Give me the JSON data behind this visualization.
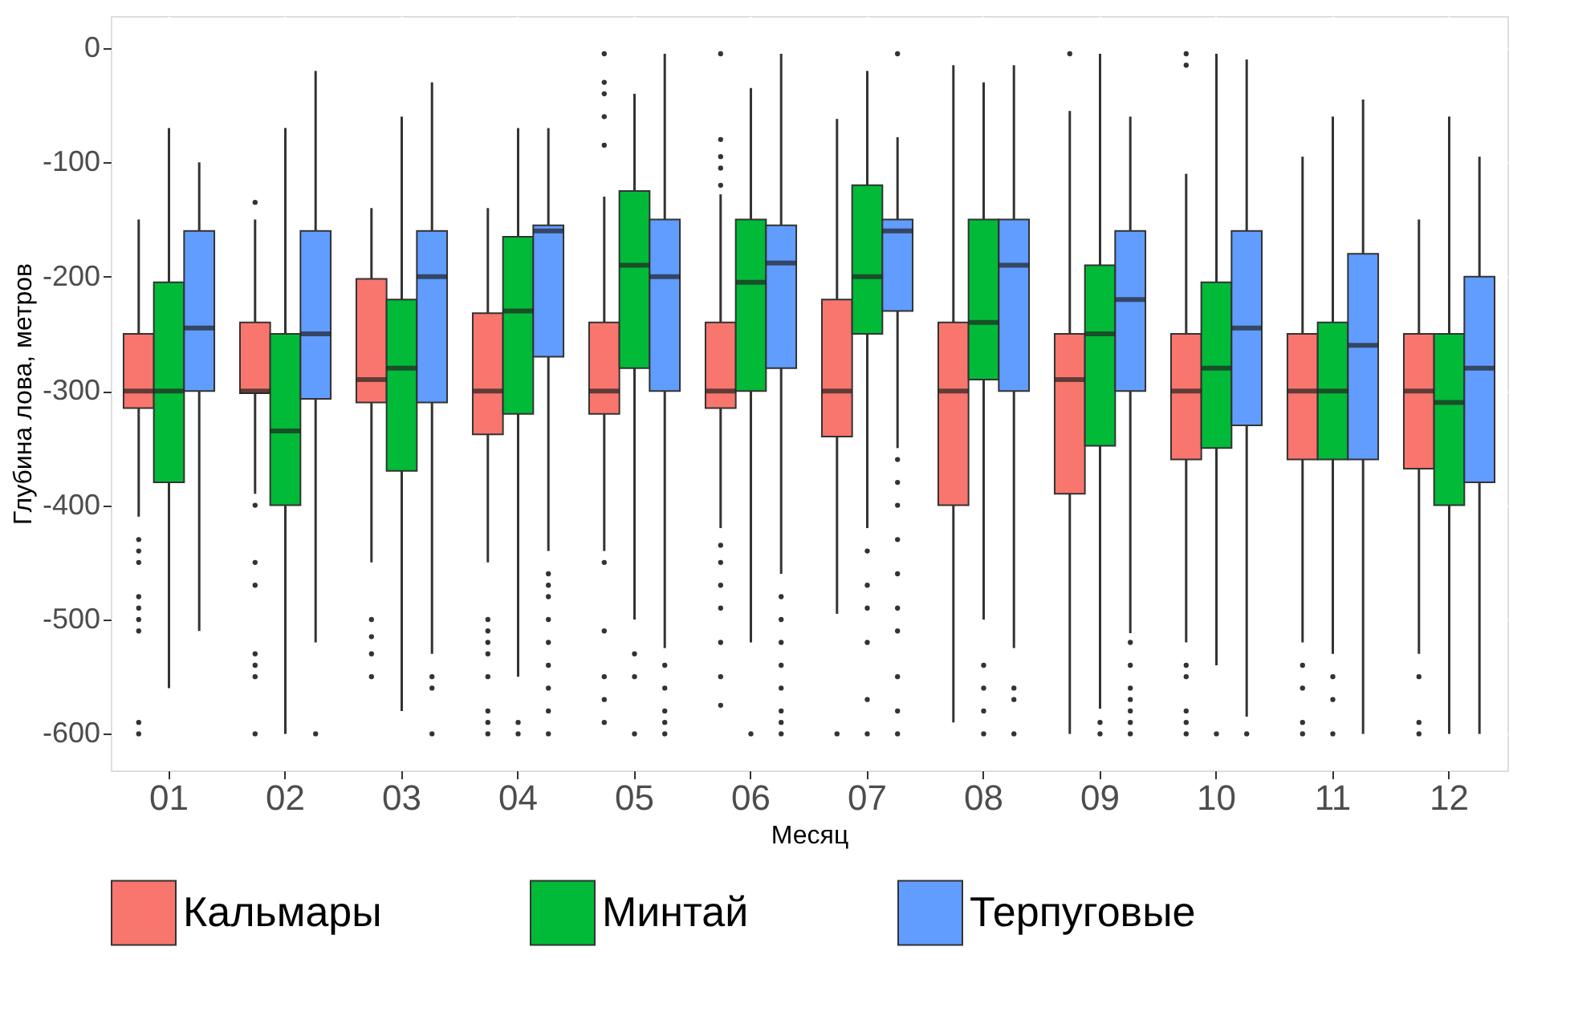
{
  "chart_data": {
    "type": "box",
    "xlabel": "Месяц",
    "ylabel": "Глубина лова, метров",
    "categories": [
      "01",
      "02",
      "03",
      "04",
      "05",
      "06",
      "07",
      "08",
      "09",
      "10",
      "11",
      "12"
    ],
    "ylim": [
      -632,
      28
    ],
    "yticks": [
      0,
      -100,
      -200,
      -300,
      -400,
      -500,
      -600
    ],
    "grid": true,
    "legend": "bottom",
    "series": [
      {
        "name": "Кальмары",
        "color": "#f8766d",
        "boxes": [
          {
            "low": -410,
            "q1": -315,
            "median": -300,
            "q3": -250,
            "high": -150,
            "outliers": [
              -430,
              -440,
              -450,
              -480,
              -490,
              -500,
              -510,
              -590,
              -600
            ]
          },
          {
            "low": -390,
            "q1": -302,
            "median": -300,
            "q3": -240,
            "high": -150,
            "outliers": [
              -135,
              -400,
              -450,
              -470,
              -530,
              -540,
              -550,
              -600
            ]
          },
          {
            "low": -450,
            "q1": -310,
            "median": -290,
            "q3": -202,
            "high": -140,
            "outliers": [
              -500,
              -515,
              -530,
              -550
            ]
          },
          {
            "low": -450,
            "q1": -338,
            "median": -300,
            "q3": -232,
            "high": -140,
            "outliers": [
              -500,
              -510,
              -520,
              -530,
              -550,
              -580,
              -590,
              -600
            ]
          },
          {
            "low": -440,
            "q1": -320,
            "median": -300,
            "q3": -240,
            "high": -130,
            "outliers": [
              -5,
              -30,
              -40,
              -60,
              -85,
              -450,
              -510,
              -550,
              -570,
              -590
            ]
          },
          {
            "low": -420,
            "q1": -315,
            "median": -300,
            "q3": -240,
            "high": -128,
            "outliers": [
              -5,
              -80,
              -95,
              -105,
              -120,
              -435,
              -450,
              -470,
              -490,
              -520,
              -550,
              -575
            ]
          },
          {
            "low": -495,
            "q1": -340,
            "median": -300,
            "q3": -220,
            "high": -62,
            "outliers": [
              -600
            ]
          },
          {
            "low": -590,
            "q1": -400,
            "median": -300,
            "q3": -240,
            "high": -15
          },
          {
            "low": -600,
            "q1": -390,
            "median": -290,
            "q3": -250,
            "high": -55,
            "outliers": [
              -5
            ]
          },
          {
            "low": -520,
            "q1": -360,
            "median": -300,
            "q3": -250,
            "high": -110,
            "outliers": [
              -5,
              -15,
              -540,
              -550,
              -580,
              -590,
              -600
            ]
          },
          {
            "low": -520,
            "q1": -360,
            "median": -300,
            "q3": -250,
            "high": -95,
            "outliers": [
              -540,
              -560,
              -590,
              -600
            ]
          },
          {
            "low": -530,
            "q1": -368,
            "median": -300,
            "q3": -250,
            "high": -150,
            "outliers": [
              -550,
              -590,
              -600
            ]
          }
        ]
      },
      {
        "name": "Минтай",
        "color": "#00ba38",
        "boxes": [
          {
            "low": -560,
            "q1": -380,
            "median": -300,
            "q3": -205,
            "high": -70
          },
          {
            "low": -600,
            "q1": -400,
            "median": -335,
            "q3": -250,
            "high": -70
          },
          {
            "low": -580,
            "q1": -370,
            "median": -280,
            "q3": -220,
            "high": -60
          },
          {
            "low": -550,
            "q1": -320,
            "median": -230,
            "q3": -165,
            "high": -70,
            "outliers": [
              -590,
              -600
            ]
          },
          {
            "low": -500,
            "q1": -280,
            "median": -190,
            "q3": -125,
            "high": -40,
            "outliers": [
              -530,
              -550,
              -600
            ]
          },
          {
            "low": -520,
            "q1": -300,
            "median": -205,
            "q3": -150,
            "high": -35,
            "outliers": [
              -600
            ]
          },
          {
            "low": -420,
            "q1": -250,
            "median": -200,
            "q3": -120,
            "high": -20,
            "outliers": [
              -440,
              -470,
              -490,
              -520,
              -570,
              -600
            ]
          },
          {
            "low": -500,
            "q1": -290,
            "median": -240,
            "q3": -150,
            "high": -30,
            "outliers": [
              -540,
              -560,
              -580,
              -600
            ]
          },
          {
            "low": -578,
            "q1": -348,
            "median": -250,
            "q3": -190,
            "high": -5,
            "outliers": [
              -590,
              -600
            ]
          },
          {
            "low": -540,
            "q1": -350,
            "median": -280,
            "q3": -205,
            "high": -5,
            "outliers": [
              -600
            ]
          },
          {
            "low": -530,
            "q1": -360,
            "median": -300,
            "q3": -240,
            "high": -60,
            "outliers": [
              -550,
              -570,
              -600
            ]
          },
          {
            "low": -600,
            "q1": -400,
            "median": -310,
            "q3": -250,
            "high": -60
          }
        ]
      },
      {
        "name": "Терпуговые",
        "color": "#619cff",
        "boxes": [
          {
            "low": -510,
            "q1": -300,
            "median": -245,
            "q3": -160,
            "high": -100
          },
          {
            "low": -520,
            "q1": -307,
            "median": -250,
            "q3": -160,
            "high": -20,
            "outliers": [
              -600
            ]
          },
          {
            "low": -530,
            "q1": -310,
            "median": -200,
            "q3": -160,
            "high": -30,
            "outliers": [
              -550,
              -560,
              -600
            ]
          },
          {
            "low": -440,
            "q1": -270,
            "median": -160,
            "q3": -155,
            "high": -70,
            "outliers": [
              -460,
              -470,
              -480,
              -500,
              -520,
              -540,
              -560,
              -580,
              -600
            ]
          },
          {
            "low": -525,
            "q1": -300,
            "median": -200,
            "q3": -150,
            "high": -5,
            "outliers": [
              -540,
              -560,
              -580,
              -590,
              -600
            ]
          },
          {
            "low": -460,
            "q1": -280,
            "median": -188,
            "q3": -155,
            "high": -5,
            "outliers": [
              -480,
              -500,
              -520,
              -540,
              -560,
              -580,
              -590,
              -600
            ]
          },
          {
            "low": -350,
            "q1": -230,
            "median": -160,
            "q3": -150,
            "high": -78,
            "outliers": [
              -5,
              -360,
              -380,
              -400,
              -430,
              -460,
              -490,
              -510,
              -550,
              -580,
              -600
            ]
          },
          {
            "low": -525,
            "q1": -300,
            "median": -190,
            "q3": -150,
            "high": -15,
            "outliers": [
              -560,
              -570,
              -600
            ]
          },
          {
            "low": -512,
            "q1": -300,
            "median": -220,
            "q3": -160,
            "high": -60,
            "outliers": [
              -520,
              -540,
              -560,
              -570,
              -580,
              -590,
              -600
            ]
          },
          {
            "low": -585,
            "q1": -330,
            "median": -245,
            "q3": -160,
            "high": -10,
            "outliers": [
              -600
            ]
          },
          {
            "low": -600,
            "q1": -360,
            "median": -260,
            "q3": -180,
            "high": -45
          },
          {
            "low": -600,
            "q1": -380,
            "median": -280,
            "q3": -200,
            "high": -95
          }
        ]
      }
    ]
  }
}
